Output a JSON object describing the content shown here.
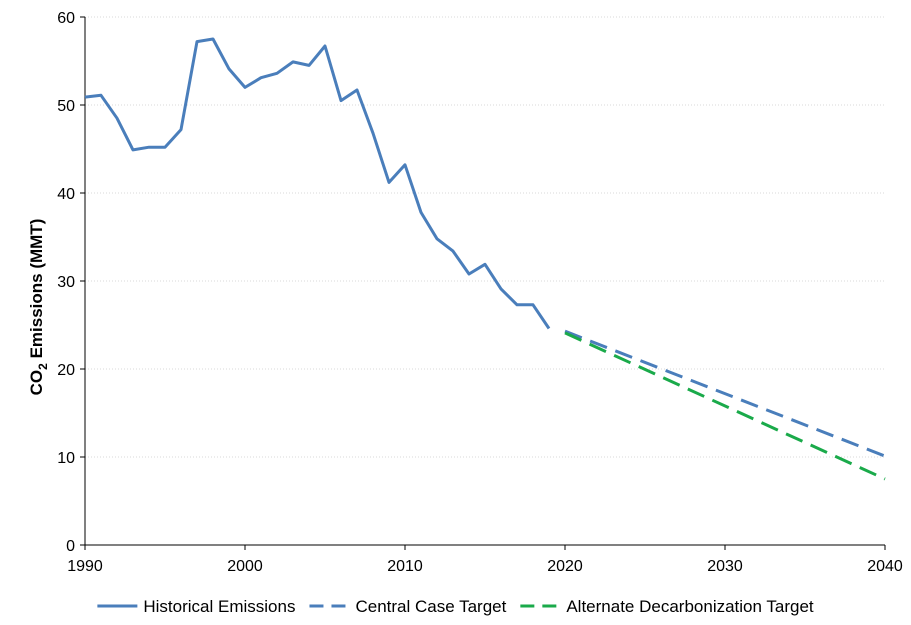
{
  "chart_data": {
    "type": "line",
    "title": "",
    "xlabel": "",
    "ylabel_parts": {
      "pre": "CO",
      "sub": "2",
      "post": " Emissions (MMT)"
    },
    "xlim": [
      1990,
      2040
    ],
    "ylim": [
      0,
      60
    ],
    "xticks": [
      1990,
      2000,
      2010,
      2020,
      2030,
      2040
    ],
    "yticks": [
      0,
      10,
      20,
      30,
      40,
      50,
      60
    ],
    "grid": true,
    "legend_position": "bottom",
    "series": [
      {
        "name": "Historical Emissions",
        "color": "#4a7ebb",
        "dash": "solid",
        "x": [
          1990,
          1991,
          1992,
          1993,
          1994,
          1995,
          1996,
          1997,
          1998,
          1999,
          2000,
          2001,
          2002,
          2003,
          2004,
          2005,
          2006,
          2007,
          2008,
          2009,
          2010,
          2011,
          2012,
          2013,
          2014,
          2015,
          2016,
          2017,
          2018,
          2019
        ],
        "y": [
          50.9,
          51.1,
          48.5,
          44.9,
          45.2,
          45.2,
          47.2,
          57.2,
          57.5,
          54.1,
          52.0,
          53.1,
          53.6,
          54.9,
          54.5,
          56.7,
          50.5,
          51.7,
          46.8,
          41.2,
          43.2,
          37.8,
          34.8,
          33.4,
          30.8,
          31.9,
          29.1,
          27.3,
          27.3,
          24.6
        ]
      },
      {
        "name": "Central Case Target",
        "color": "#4a7ebb",
        "dash": "long-dash",
        "x": [
          2020,
          2040
        ],
        "y": [
          24.3,
          10.1
        ]
      },
      {
        "name": "Alternate Decarbonization Target",
        "color": "#1aaa4a",
        "dash": "long-dash",
        "x": [
          2020,
          2040
        ],
        "y": [
          24.1,
          7.5
        ]
      }
    ]
  }
}
